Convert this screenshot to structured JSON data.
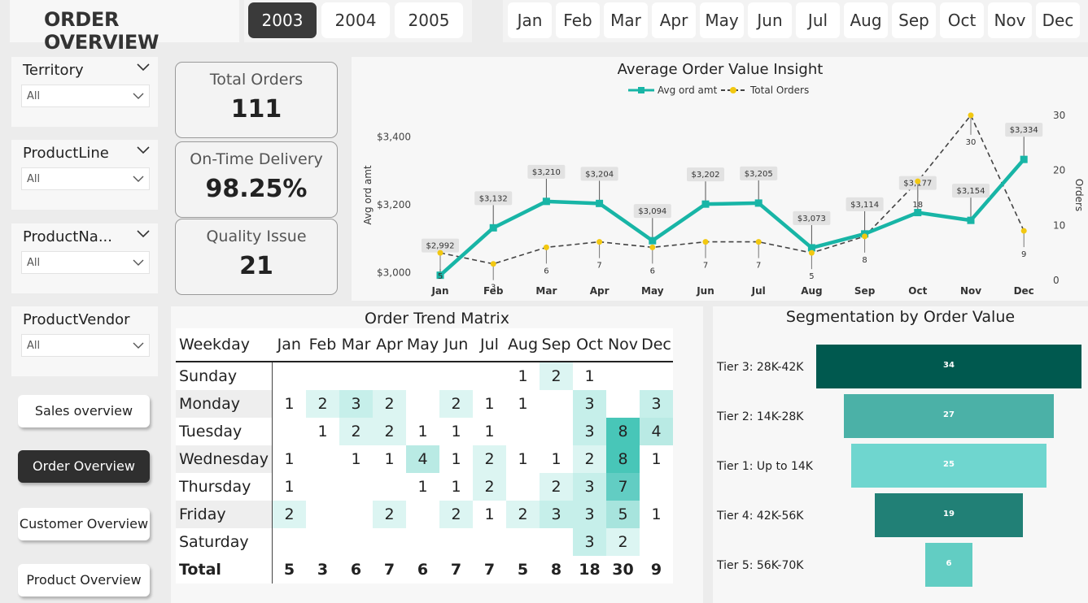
{
  "header": {
    "title": "ORDER OVERVIEW"
  },
  "years": [
    "2003",
    "2004",
    "2005"
  ],
  "active_year": "2003",
  "months": [
    "Jan",
    "Feb",
    "Mar",
    "Apr",
    "May",
    "Jun",
    "Jul",
    "Aug",
    "Sep",
    "Oct",
    "Nov",
    "Dec"
  ],
  "filters": [
    {
      "label": "Territory",
      "value": "All"
    },
    {
      "label": "ProductLine",
      "value": "All"
    },
    {
      "label": "ProductNa...",
      "value": "All"
    },
    {
      "label": "ProductVendor",
      "value": "All"
    }
  ],
  "nav": [
    "Sales overview",
    "Order Overview",
    "Customer Overview",
    "Product Overview"
  ],
  "active_nav": "Order Overview",
  "kpis": [
    {
      "label": "Total Orders",
      "value": "111"
    },
    {
      "label": "On-Time Delivery",
      "value": "98.25%"
    },
    {
      "label": "Quality Issue",
      "value": "21"
    }
  ],
  "chart_data": {
    "type": "line",
    "title": "Average Order Value Insight",
    "categories": [
      "Jan",
      "Feb",
      "Mar",
      "Apr",
      "May",
      "Jun",
      "Jul",
      "Aug",
      "Sep",
      "Oct",
      "Nov",
      "Dec"
    ],
    "series": [
      {
        "name": "Avg ord amt",
        "axis": "left",
        "values": [
          2992,
          3132,
          3210,
          3204,
          3094,
          3202,
          3205,
          3073,
          3114,
          3177,
          3154,
          3334
        ],
        "labels": [
          "$2,992",
          "$3,132",
          "$3,210",
          "$3,204",
          "$3,094",
          "$3,202",
          "$3,205",
          "$3,073",
          "$3,114",
          "$3,177",
          "$3,154",
          "$3,334"
        ]
      },
      {
        "name": "Total Orders",
        "axis": "right",
        "values": [
          5,
          3,
          6,
          7,
          6,
          7,
          7,
          5,
          8,
          18,
          30,
          9
        ],
        "labels": [
          "5",
          "3",
          "6",
          "7",
          "6",
          "7",
          "7",
          "5",
          "8",
          "18",
          "30",
          "9"
        ]
      }
    ],
    "ylabel": "Avg ord amt",
    "y2label": "Orders",
    "ylim": [
      2960,
      3440
    ],
    "yticks": [
      "$3,000",
      "$3,200",
      "$3,400"
    ],
    "y2lim": [
      -1,
      31.5
    ],
    "y2ticks": [
      "0",
      "10",
      "20",
      "30"
    ],
    "colors": {
      "avg": "#18b5a6",
      "orders": "#f2c811",
      "dash": "#444444"
    }
  },
  "matrix": {
    "title": "Order Trend Matrix",
    "corner": "Weekday",
    "columns": [
      "Jan",
      "Feb",
      "Mar",
      "Apr",
      "May",
      "Jun",
      "Jul",
      "Aug",
      "Sep",
      "Oct",
      "Nov",
      "Dec"
    ],
    "rows": [
      {
        "label": "Sunday",
        "cells": [
          "",
          "",
          "",
          "",
          "",
          "",
          "",
          "1",
          "2",
          "1",
          "",
          ""
        ]
      },
      {
        "label": "Monday",
        "cells": [
          "1",
          "2",
          "3",
          "2",
          "",
          "2",
          "1",
          "1",
          "",
          "3",
          "",
          "3"
        ]
      },
      {
        "label": "Tuesday",
        "cells": [
          "",
          "1",
          "2",
          "2",
          "1",
          "1",
          "1",
          "",
          "",
          "3",
          "8",
          "4"
        ]
      },
      {
        "label": "Wednesday",
        "cells": [
          "1",
          "",
          "1",
          "1",
          "4",
          "1",
          "2",
          "1",
          "1",
          "2",
          "8",
          "1"
        ]
      },
      {
        "label": "Thursday",
        "cells": [
          "1",
          "",
          "",
          "",
          "1",
          "1",
          "2",
          "",
          "2",
          "3",
          "7",
          ""
        ]
      },
      {
        "label": "Friday",
        "cells": [
          "2",
          "",
          "",
          "2",
          "",
          "2",
          "1",
          "2",
          "3",
          "3",
          "5",
          "1"
        ]
      },
      {
        "label": "Saturday",
        "cells": [
          "",
          "",
          "",
          "",
          "",
          "",
          "",
          "",
          "",
          "3",
          "2",
          ""
        ]
      }
    ],
    "total": {
      "label": "Total",
      "cells": [
        "5",
        "3",
        "6",
        "7",
        "6",
        "7",
        "7",
        "5",
        "8",
        "18",
        "30",
        "9"
      ]
    }
  },
  "funnel": {
    "title": "Segmentation by Order Value",
    "items": [
      {
        "label": "Tier 3: 28K-42K",
        "value": 34,
        "text": "34",
        "color": "#00594f"
      },
      {
        "label": "Tier 2: 14K-28K",
        "value": 27,
        "text": "27",
        "color": "#4bb1a7"
      },
      {
        "label": "Tier 1: Up to 14K",
        "value": 25,
        "text": "25",
        "color": "#6fd6cf"
      },
      {
        "label": "Tier 4: 42K-56K",
        "value": 19,
        "text": "19",
        "color": "#218076"
      },
      {
        "label": "Tier 5: 56K-70K",
        "value": 6,
        "text": "6",
        "color": "#62cdc3"
      }
    ]
  }
}
